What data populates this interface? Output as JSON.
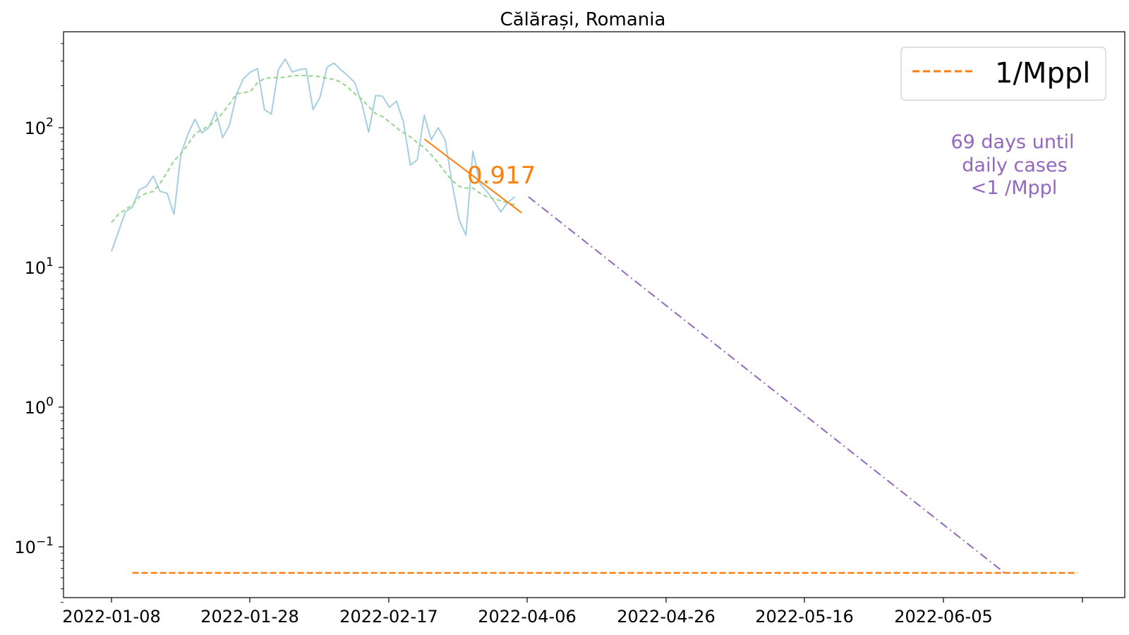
{
  "chart_data": {
    "type": "line",
    "title": "Călărași, Romania",
    "xlabel": "",
    "ylabel": "",
    "yscale": "log",
    "ylim": [
      0.04,
      480
    ],
    "x_ticks": [
      "2022-01-08",
      "2022-01-28",
      "2022-02-17",
      "2022-04-06",
      "2022-04-26",
      "2022-05-16",
      "2022-06-05",
      ""
    ],
    "y_ticks": [
      {
        "value": 0.1,
        "base": "10",
        "exp": "−1"
      },
      {
        "value": 1,
        "base": "10",
        "exp": "0"
      },
      {
        "value": 10,
        "base": "10",
        "exp": "1"
      },
      {
        "value": 100,
        "base": "10",
        "exp": "2"
      }
    ],
    "legend": {
      "position": "top-right",
      "entries": [
        {
          "label": "1/Mppl",
          "color": "#ff7f0e",
          "style": "dashed"
        }
      ]
    },
    "grid": false,
    "colors": {
      "daily": "#a6cee3",
      "smoothed": "#98d38f",
      "fit": "#ff7f0e",
      "projection": "#9467bd",
      "threshold": "#ff7f0e"
    },
    "series": [
      {
        "style": "solid",
        "x": [
          0,
          1,
          2,
          3,
          4,
          5,
          6,
          7,
          8,
          9,
          10,
          11,
          12,
          13,
          14,
          15,
          16,
          17,
          18,
          19,
          20,
          21,
          22,
          23,
          24,
          25,
          26,
          27,
          28,
          29,
          30,
          31,
          32,
          33,
          34,
          35,
          36,
          37,
          38,
          39,
          40,
          41,
          42,
          43,
          44,
          45,
          46,
          47,
          48,
          49,
          50,
          51,
          52,
          53,
          54,
          55,
          56,
          57,
          58
        ],
        "values": [
          13,
          18,
          25,
          27,
          36,
          38,
          45,
          35,
          34,
          24,
          65,
          90,
          115,
          92,
          100,
          130,
          85,
          105,
          175,
          225,
          250,
          265,
          135,
          125,
          260,
          310,
          250,
          260,
          265,
          135,
          165,
          270,
          290,
          260,
          235,
          210,
          150,
          93,
          170,
          168,
          140,
          155,
          110,
          54,
          59,
          123,
          82,
          100,
          82,
          40,
          22,
          17,
          68,
          40,
          35,
          30,
          25,
          29,
          32
        ]
      },
      {
        "style": "dashed",
        "x": [
          0,
          1,
          2,
          3,
          4,
          5,
          6,
          7,
          8,
          9,
          10,
          11,
          12,
          13,
          14,
          15,
          16,
          17,
          18,
          19,
          20,
          21,
          22,
          23,
          24,
          25,
          26,
          27,
          28,
          29,
          30,
          31,
          32,
          33,
          34,
          35,
          36,
          37,
          38,
          39,
          40,
          41,
          42,
          43,
          44,
          45,
          46,
          47,
          48,
          49,
          50,
          51,
          52,
          53,
          54,
          55,
          56,
          57,
          58
        ],
        "values": [
          21,
          24,
          26,
          28,
          32,
          34,
          35,
          40,
          48,
          58,
          65,
          76,
          90,
          97,
          103,
          112,
          128,
          148,
          175,
          178,
          182,
          210,
          225,
          228,
          228,
          230,
          235,
          237,
          236,
          234,
          232,
          225,
          222,
          212,
          195,
          175,
          160,
          142,
          126,
          120,
          110,
          100,
          92,
          86,
          78,
          72,
          64,
          56,
          48,
          42,
          38,
          37,
          37,
          34,
          32,
          31,
          30,
          29,
          28
        ]
      },
      {
        "style": "solid",
        "x": [
          45,
          59
        ],
        "values": [
          83,
          24.6
        ]
      },
      {
        "style": "dashdot",
        "x": [
          60,
          128.5
        ],
        "values": [
          32,
          0.065
        ]
      },
      {
        "style": "dashed",
        "x": [
          3,
          139
        ],
        "values": [
          0.065,
          0.065
        ]
      }
    ],
    "annotations": [
      {
        "text": "0.917",
        "color": "#ff7f0e"
      },
      {
        "lines": [
          "69 days until",
          "daily cases",
          "<1 /Mppl"
        ],
        "color": "#9467bd"
      }
    ]
  }
}
